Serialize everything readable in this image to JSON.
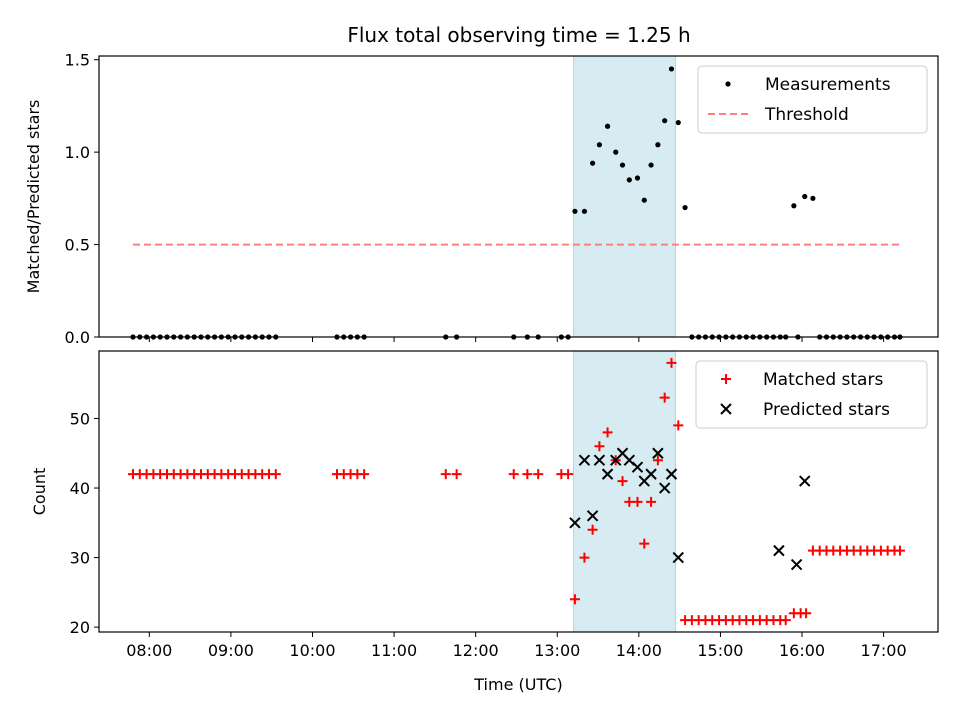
{
  "title": "Flux total observing time = 1.25 h",
  "colors": {
    "measurement": "#000000",
    "threshold": "#ff7f7f",
    "matched": "#ff0000",
    "predicted": "#000000",
    "highlight": "#add8e6"
  },
  "chart_data": [
    {
      "type": "scatter",
      "ylabel": "Matched/Predicted stars",
      "xlabel": "",
      "xlim": [
        "07:23",
        "17:40"
      ],
      "ylim": [
        0,
        1.52
      ],
      "yticks": [
        "0.0",
        "0.5",
        "1.0",
        "1.5"
      ],
      "xticks": [
        "08:00",
        "09:00",
        "10:00",
        "11:00",
        "12:00",
        "13:00",
        "14:00",
        "15:00",
        "16:00",
        "17:00"
      ],
      "shaded_region": [
        "13:12",
        "14:27"
      ],
      "legend": {
        "position": "top-right",
        "entries": [
          "Measurements",
          "Threshold"
        ]
      },
      "threshold": {
        "value": 0.5,
        "x_range": [
          "07:48",
          "17:12"
        ]
      },
      "series": [
        {
          "name": "Measurements",
          "x": [
            "07:48",
            "07:53",
            "07:58",
            "08:03",
            "08:08",
            "08:13",
            "08:18",
            "08:23",
            "08:28",
            "08:33",
            "08:38",
            "08:43",
            "08:48",
            "08:53",
            "08:58",
            "09:03",
            "09:08",
            "09:13",
            "09:18",
            "09:23",
            "09:28",
            "09:33",
            "10:18",
            "10:23",
            "10:28",
            "10:33",
            "10:38",
            "11:38",
            "11:46",
            "12:28",
            "12:38",
            "12:46",
            "13:03",
            "13:08",
            "13:13",
            "13:20",
            "13:26",
            "13:31",
            "13:37",
            "13:43",
            "13:48",
            "13:53",
            "13:59",
            "14:04",
            "14:09",
            "14:14",
            "14:19",
            "14:24",
            "14:29",
            "14:34",
            "14:39",
            "14:44",
            "14:49",
            "14:54",
            "14:59",
            "15:04",
            "15:09",
            "15:14",
            "15:19",
            "15:24",
            "15:29",
            "15:34",
            "15:39",
            "15:44",
            "15:48",
            "15:54",
            "15:57",
            "16:02",
            "16:08",
            "16:13",
            "16:18",
            "16:23",
            "16:28",
            "16:33",
            "16:38",
            "16:43",
            "16:48",
            "16:53",
            "16:58",
            "17:03",
            "17:08",
            "17:12"
          ],
          "y": [
            0,
            0,
            0,
            0,
            0,
            0,
            0,
            0,
            0,
            0,
            0,
            0,
            0,
            0,
            0,
            0,
            0,
            0,
            0,
            0,
            0,
            0,
            0,
            0,
            0,
            0,
            0,
            0,
            0,
            0,
            0,
            0,
            0,
            0,
            0.68,
            0.68,
            0.94,
            1.04,
            1.14,
            1.0,
            0.93,
            0.85,
            0.86,
            0.74,
            0.93,
            1.04,
            1.17,
            1.45,
            1.16,
            0.7,
            0,
            0,
            0,
            0,
            0,
            0,
            0,
            0,
            0,
            0,
            0,
            0,
            0,
            0,
            0,
            0.71,
            0,
            0.76,
            0.75,
            0,
            0,
            0,
            0,
            0,
            0,
            0,
            0,
            0,
            0,
            0,
            0,
            0
          ]
        }
      ]
    },
    {
      "type": "scatter",
      "ylabel": "Count",
      "xlabel": "Time (UTC)",
      "xlim": [
        "07:23",
        "17:40"
      ],
      "ylim": [
        19.3,
        59.7
      ],
      "yticks": [
        "20",
        "30",
        "40",
        "50"
      ],
      "xticks": [
        "08:00",
        "09:00",
        "10:00",
        "11:00",
        "12:00",
        "13:00",
        "14:00",
        "15:00",
        "16:00",
        "17:00"
      ],
      "shaded_region": [
        "13:12",
        "14:27"
      ],
      "legend": {
        "position": "top-right",
        "entries": [
          "Matched stars",
          "Predicted stars"
        ]
      },
      "series": [
        {
          "name": "Matched stars",
          "x": [
            "07:48",
            "07:53",
            "07:58",
            "08:03",
            "08:08",
            "08:13",
            "08:18",
            "08:23",
            "08:28",
            "08:33",
            "08:38",
            "08:43",
            "08:48",
            "08:53",
            "08:58",
            "09:03",
            "09:08",
            "09:13",
            "09:18",
            "09:23",
            "09:28",
            "09:33",
            "10:18",
            "10:23",
            "10:28",
            "10:33",
            "10:38",
            "11:38",
            "11:46",
            "12:28",
            "12:38",
            "12:46",
            "13:03",
            "13:08",
            "13:13",
            "13:20",
            "13:26",
            "13:31",
            "13:37",
            "13:43",
            "13:48",
            "13:53",
            "13:59",
            "14:04",
            "14:09",
            "14:14",
            "14:19",
            "14:24",
            "14:29",
            "14:34",
            "14:39",
            "14:44",
            "14:49",
            "14:54",
            "14:59",
            "15:04",
            "15:09",
            "15:14",
            "15:19",
            "15:24",
            "15:29",
            "15:34",
            "15:39",
            "15:44",
            "15:48",
            "15:54",
            "15:59",
            "16:03",
            "16:08",
            "16:13",
            "16:18",
            "16:23",
            "16:28",
            "16:33",
            "16:38",
            "16:43",
            "16:48",
            "16:53",
            "16:58",
            "17:03",
            "17:08",
            "17:12"
          ],
          "y": [
            42,
            42,
            42,
            42,
            42,
            42,
            42,
            42,
            42,
            42,
            42,
            42,
            42,
            42,
            42,
            42,
            42,
            42,
            42,
            42,
            42,
            42,
            42,
            42,
            42,
            42,
            42,
            42,
            42,
            42,
            42,
            42,
            42,
            42,
            24,
            30,
            34,
            46,
            48,
            44,
            41,
            38,
            38,
            32,
            38,
            44,
            53,
            58,
            49,
            21,
            21,
            21,
            21,
            21,
            21,
            21,
            21,
            21,
            21,
            21,
            21,
            21,
            21,
            21,
            21,
            22,
            22,
            22,
            31,
            31,
            31,
            31,
            31,
            31,
            31,
            31,
            31,
            31,
            31,
            31,
            31,
            31
          ]
        },
        {
          "name": "Predicted stars",
          "x": [
            "13:13",
            "13:20",
            "13:26",
            "13:31",
            "13:37",
            "13:43",
            "13:48",
            "13:53",
            "13:59",
            "14:04",
            "14:09",
            "14:14",
            "14:19",
            "14:24",
            "14:29",
            "15:43",
            "15:56",
            "16:02"
          ],
          "y": [
            35,
            44,
            36,
            44,
            42,
            44,
            45,
            44,
            43,
            41,
            42,
            45,
            40,
            42,
            30,
            31,
            29,
            41
          ]
        }
      ]
    }
  ]
}
